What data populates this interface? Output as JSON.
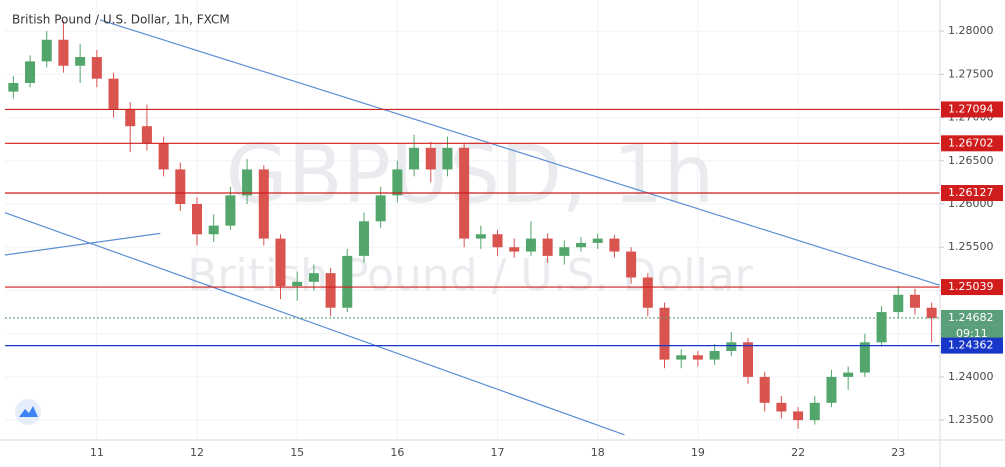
{
  "chart_data": {
    "type": "candlestick",
    "title": "British Pound / U.S. Dollar, 1h, FXCM",
    "watermark": "GBPUSD, 1h",
    "watermark_subtitle": "British Pound / U.S. Dollar",
    "countdown": "09:11",
    "up_color": "#53a66b",
    "down_color": "#d9534f",
    "categories": [
      null,
      null,
      null,
      null,
      null,
      "11",
      null,
      null,
      null,
      null,
      null,
      "12",
      null,
      null,
      null,
      null,
      null,
      "15",
      null,
      null,
      null,
      null,
      null,
      "16",
      null,
      null,
      null,
      null,
      null,
      "17",
      null,
      null,
      null,
      null,
      null,
      "18",
      null,
      null,
      null,
      null,
      null,
      "19",
      null,
      null,
      null,
      null,
      null,
      "22",
      null,
      null,
      null,
      null,
      null,
      "23",
      null,
      null
    ],
    "ohlc": [
      [
        1.273,
        1.2748,
        1.2722,
        1.274
      ],
      [
        1.274,
        1.2772,
        1.2735,
        1.2765
      ],
      [
        1.2765,
        1.28,
        1.2758,
        1.279
      ],
      [
        1.279,
        1.2812,
        1.2752,
        1.276
      ],
      [
        1.276,
        1.2785,
        1.274,
        1.277
      ],
      [
        1.277,
        1.2778,
        1.2735,
        1.2745
      ],
      [
        1.2745,
        1.2752,
        1.27,
        1.271
      ],
      [
        1.271,
        1.2718,
        1.266,
        1.269
      ],
      [
        1.269,
        1.2715,
        1.2662,
        1.267
      ],
      [
        1.267,
        1.2678,
        1.2632,
        1.264
      ],
      [
        1.264,
        1.2648,
        1.2592,
        1.26
      ],
      [
        1.26,
        1.2608,
        1.2552,
        1.2565
      ],
      [
        1.2565,
        1.2588,
        1.2556,
        1.2575
      ],
      [
        1.2575,
        1.262,
        1.257,
        1.261
      ],
      [
        1.261,
        1.2652,
        1.26,
        1.264
      ],
      [
        1.264,
        1.2645,
        1.2552,
        1.256
      ],
      [
        1.256,
        1.2565,
        1.249,
        1.2505
      ],
      [
        1.2505,
        1.2522,
        1.2488,
        1.251
      ],
      [
        1.251,
        1.253,
        1.25,
        1.252
      ],
      [
        1.252,
        1.2526,
        1.247,
        1.248
      ],
      [
        1.248,
        1.2548,
        1.2475,
        1.254
      ],
      [
        1.254,
        1.259,
        1.2532,
        1.258
      ],
      [
        1.258,
        1.262,
        1.2572,
        1.261
      ],
      [
        1.261,
        1.265,
        1.2602,
        1.264
      ],
      [
        1.264,
        1.268,
        1.2632,
        1.2665
      ],
      [
        1.2665,
        1.2672,
        1.2625,
        1.264
      ],
      [
        1.264,
        1.2678,
        1.2632,
        1.2665
      ],
      [
        1.2665,
        1.267,
        1.255,
        1.256
      ],
      [
        1.256,
        1.2575,
        1.2548,
        1.2565
      ],
      [
        1.2565,
        1.257,
        1.254,
        1.255
      ],
      [
        1.255,
        1.256,
        1.2538,
        1.2545
      ],
      [
        1.2545,
        1.258,
        1.254,
        1.256
      ],
      [
        1.256,
        1.2566,
        1.2532,
        1.254
      ],
      [
        1.254,
        1.2558,
        1.253,
        1.255
      ],
      [
        1.255,
        1.2562,
        1.2545,
        1.2555
      ],
      [
        1.2555,
        1.2566,
        1.2548,
        1.256
      ],
      [
        1.256,
        1.2564,
        1.2538,
        1.2545
      ],
      [
        1.2545,
        1.255,
        1.2508,
        1.2515
      ],
      [
        1.2515,
        1.252,
        1.247,
        1.248
      ],
      [
        1.248,
        1.2486,
        1.241,
        1.242
      ],
      [
        1.242,
        1.2432,
        1.241,
        1.2425
      ],
      [
        1.2425,
        1.243,
        1.2412,
        1.242
      ],
      [
        1.242,
        1.2438,
        1.2414,
        1.243
      ],
      [
        1.243,
        1.2452,
        1.2424,
        1.244
      ],
      [
        1.244,
        1.2445,
        1.2392,
        1.24
      ],
      [
        1.24,
        1.2406,
        1.236,
        1.237
      ],
      [
        1.237,
        1.2378,
        1.2352,
        1.236
      ],
      [
        1.236,
        1.2365,
        1.234,
        1.235
      ],
      [
        1.235,
        1.2378,
        1.2345,
        1.237
      ],
      [
        1.237,
        1.2408,
        1.2365,
        1.24
      ],
      [
        1.24,
        1.2412,
        1.2385,
        1.2405
      ],
      [
        1.2405,
        1.245,
        1.24,
        1.244
      ],
      [
        1.244,
        1.2482,
        1.2435,
        1.2475
      ],
      [
        1.2475,
        1.2505,
        1.2468,
        1.2495
      ],
      [
        1.2495,
        1.2502,
        1.2472,
        1.248
      ],
      [
        1.248,
        1.2486,
        1.244,
        1.2468
      ]
    ],
    "ylim": [
      1.2327,
      1.2836
    ],
    "yticks": [
      {
        "value": 1.235,
        "label": "1.23500"
      },
      {
        "value": 1.24,
        "label": "1.24000"
      },
      {
        "value": 1.245,
        "label": "1.24500"
      },
      {
        "value": 1.25,
        "label": "1.25000"
      },
      {
        "value": 1.255,
        "label": "1.25500"
      },
      {
        "value": 1.26,
        "label": "1.26000"
      },
      {
        "value": 1.265,
        "label": "1.26500"
      },
      {
        "value": 1.27,
        "label": "1.27000"
      },
      {
        "value": 1.275,
        "label": "1.27500"
      },
      {
        "value": 1.28,
        "label": "1.28000"
      }
    ],
    "grid": true,
    "levels": [
      {
        "value": 1.27094,
        "color": "#d01c1c",
        "style": "solid"
      },
      {
        "value": 1.26702,
        "color": "#d01c1c",
        "style": "solid"
      },
      {
        "value": 1.26127,
        "color": "#d01c1c",
        "style": "solid"
      },
      {
        "value": 1.25039,
        "color": "#d01c1c",
        "style": "solid"
      },
      {
        "value": 1.24682,
        "color": "#5a9e7a",
        "style": "dotted"
      },
      {
        "value": 1.24362,
        "color": "#1836c8",
        "style": "solid"
      }
    ],
    "trendlines": [
      {
        "color": "#5b8fd6",
        "points": [
          [
            5.19,
            1.2813
          ],
          [
            55.5,
            1.2506
          ]
        ]
      },
      {
        "color": "#5b8fd6",
        "points": [
          [
            -0.5,
            1.259
          ],
          [
            36.6,
            1.2333
          ]
        ]
      },
      {
        "color": "#5b8fd6",
        "points": [
          [
            -0.5,
            1.2541
          ],
          [
            8.8,
            1.2566
          ]
        ]
      }
    ]
  }
}
